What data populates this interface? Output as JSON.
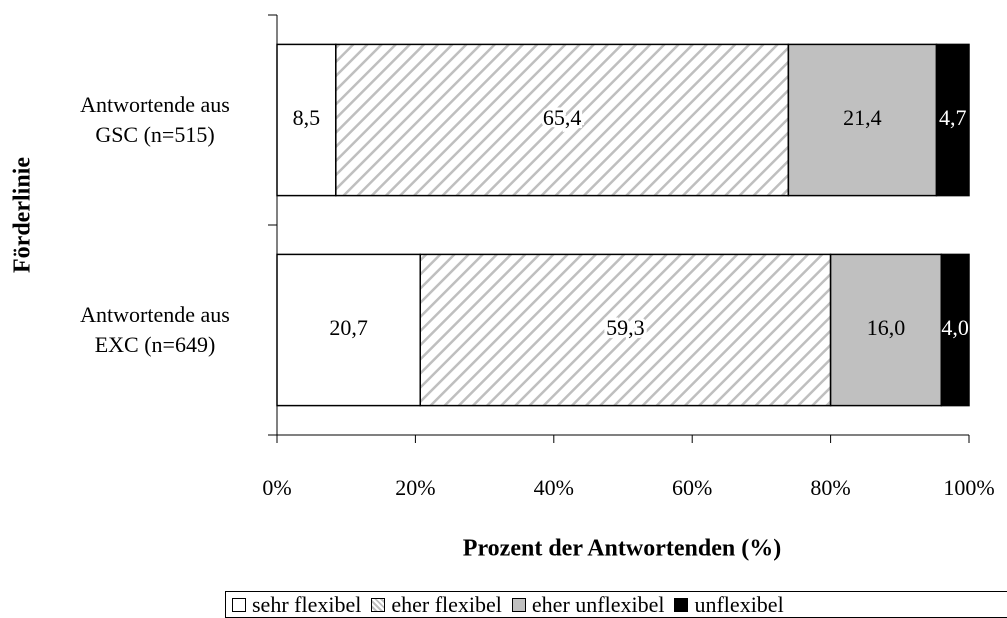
{
  "chart_data": {
    "type": "stacked_bar_horizontal",
    "categories": [
      "Antwortende aus GSC (n=515)",
      "Antwortende aus EXC (n=649)"
    ],
    "series": [
      {
        "name": "sehr flexibel",
        "color": "#ffffff",
        "values": [
          8.5,
          20.7
        ],
        "value_labels": [
          "8,5",
          "20,7"
        ]
      },
      {
        "name": "eher flexibel",
        "color": "#bfbfbf",
        "pattern": "hatch",
        "values": [
          65.4,
          59.3
        ],
        "value_labels": [
          "65,4",
          "59,3"
        ]
      },
      {
        "name": "eher unflexibel",
        "color": "#c0c0c0",
        "values": [
          21.4,
          16.0
        ],
        "value_labels": [
          "21,4",
          "16,0"
        ]
      },
      {
        "name": "unflexibel",
        "color": "#000000",
        "values": [
          4.7,
          4.0
        ],
        "value_labels": [
          "4,7",
          "4,0"
        ]
      }
    ],
    "xlabel": "Prozent der Antwortenden (%)",
    "ylabel": "Förderlinie",
    "xlim": [
      0,
      100
    ],
    "xticks": [
      {
        "value": 0,
        "label": "0%"
      },
      {
        "value": 20,
        "label": "20%"
      },
      {
        "value": 40,
        "label": "40%"
      },
      {
        "value": 60,
        "label": "60%"
      },
      {
        "value": 80,
        "label": "80%"
      },
      {
        "value": 100,
        "label": "100%"
      }
    ],
    "legend": "bottom"
  }
}
